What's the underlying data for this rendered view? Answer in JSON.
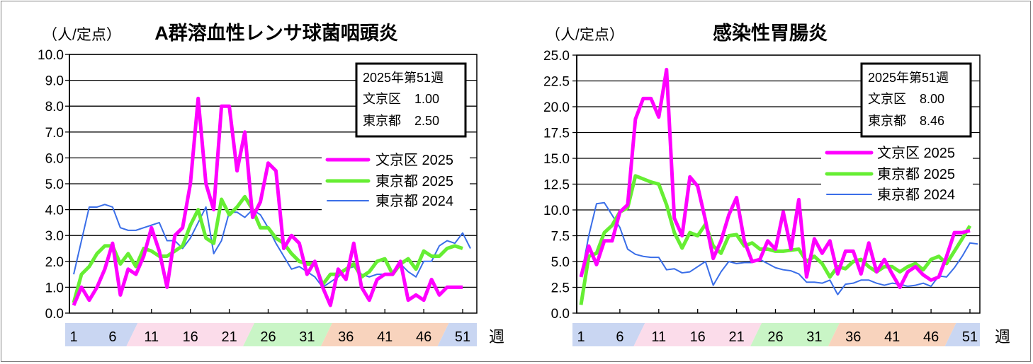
{
  "colors": {
    "bunkyo_2025": "#ff00ff",
    "tokyo_2025": "#66ee33",
    "tokyo_2024": "#3a6ee8",
    "band_blue": "#c9d6f2",
    "band_pink": "#fbdcea",
    "band_green": "#c9f5c6",
    "band_orange": "#f8d3bd"
  },
  "chart_data": [
    {
      "type": "line",
      "title": "A群溶血性レンサ球菌咽頭炎",
      "ylabel": "（人/定点）",
      "xlabel": "週",
      "ylim": [
        0,
        10
      ],
      "yticks": [
        "0.0",
        "1.0",
        "2.0",
        "3.0",
        "4.0",
        "5.0",
        "6.0",
        "7.0",
        "8.0",
        "9.0",
        "10.0"
      ],
      "xticks": [
        "1",
        "6",
        "11",
        "16",
        "21",
        "26",
        "31",
        "36",
        "41",
        "46",
        "51"
      ],
      "grid": true,
      "legend_placement": "right",
      "info_box": {
        "heading": "2025年第51週",
        "rows": [
          {
            "label": "文京区",
            "value": "1.00"
          },
          {
            "label": "東京都",
            "value": "2.50"
          }
        ]
      },
      "series": [
        {
          "name": "文京区 2025",
          "color_key": "bunkyo_2025",
          "width": 5,
          "values": [
            0.3,
            1.0,
            0.5,
            1.0,
            1.7,
            2.7,
            0.7,
            1.7,
            1.5,
            2.2,
            3.3,
            2.4,
            1.0,
            3.0,
            3.3,
            5.0,
            8.3,
            5.0,
            4.0,
            8.0,
            8.0,
            5.5,
            7.0,
            3.7,
            4.3,
            5.8,
            5.5,
            2.5,
            3.0,
            2.7,
            1.5,
            2.0,
            1.0,
            0.3,
            1.7,
            1.3,
            2.7,
            1.0,
            0.5,
            1.3,
            1.5,
            1.5,
            2.0,
            0.5,
            0.7,
            0.5,
            1.3,
            0.7,
            1.0,
            1.0,
            1.0
          ]
        },
        {
          "name": "東京都 2025",
          "color_key": "tokyo_2025",
          "width": 5,
          "values": [
            0.4,
            1.5,
            1.8,
            2.3,
            2.6,
            2.6,
            1.9,
            2.3,
            1.8,
            2.5,
            2.4,
            2.2,
            2.2,
            2.4,
            2.6,
            3.4,
            4.0,
            2.9,
            2.7,
            4.4,
            3.8,
            4.1,
            4.5,
            4.0,
            3.3,
            3.3,
            2.9,
            2.7,
            2.3,
            2.0,
            1.9,
            1.9,
            1.1,
            1.5,
            1.5,
            1.7,
            1.9,
            1.4,
            1.6,
            2.0,
            2.1,
            1.5,
            1.9,
            2.1,
            1.7,
            2.4,
            2.2,
            2.2,
            2.5,
            2.6,
            2.5
          ]
        },
        {
          "name": "東京都 2024",
          "color_key": "tokyo_2024",
          "width": 2,
          "values": [
            1.5,
            2.8,
            4.1,
            4.1,
            4.2,
            4.1,
            3.3,
            3.2,
            3.2,
            3.3,
            3.4,
            3.5,
            2.8,
            2.8,
            2.5,
            2.9,
            3.5,
            4.1,
            2.3,
            2.8,
            3.9,
            3.9,
            3.7,
            4.0,
            3.8,
            3.3,
            2.7,
            2.2,
            1.7,
            1.8,
            1.6,
            1.4,
            1.0,
            1.2,
            1.4,
            1.7,
            1.8,
            1.5,
            1.4,
            1.5,
            1.5,
            1.5,
            1.9,
            1.6,
            1.4,
            2.0,
            2.0,
            2.6,
            2.8,
            2.7,
            3.1,
            2.5
          ]
        }
      ]
    },
    {
      "type": "line",
      "title": "感染性胃腸炎",
      "ylabel": "（人/定点）",
      "xlabel": "週",
      "ylim": [
        0,
        25
      ],
      "yticks": [
        "0.0",
        "2.5",
        "5.0",
        "7.5",
        "10.0",
        "12.5",
        "15.0",
        "17.5",
        "20.0",
        "22.5",
        "25.0"
      ],
      "xticks": [
        "1",
        "6",
        "11",
        "16",
        "21",
        "26",
        "31",
        "36",
        "41",
        "46",
        "51"
      ],
      "grid": true,
      "legend_placement": "right",
      "info_box": {
        "heading": "2025年第51週",
        "rows": [
          {
            "label": "文京区",
            "value": "8.00"
          },
          {
            "label": "東京都",
            "value": "8.46"
          }
        ]
      },
      "series": [
        {
          "name": "文京区 2025",
          "color_key": "bunkyo_2025",
          "width": 5,
          "values": [
            3.5,
            6.5,
            4.7,
            7.0,
            7.0,
            9.8,
            10.5,
            18.8,
            20.8,
            20.8,
            19.0,
            23.6,
            9.2,
            7.5,
            13.2,
            12.3,
            9.0,
            5.3,
            7.0,
            9.5,
            11.2,
            7.0,
            5.0,
            5.2,
            7.0,
            6.2,
            9.8,
            6.2,
            11.0,
            3.5,
            7.2,
            5.8,
            7.0,
            3.8,
            6.0,
            6.0,
            3.8,
            6.8,
            4.0,
            5.2,
            3.8,
            2.5,
            4.0,
            4.5,
            3.7,
            3.2,
            3.5,
            5.5,
            7.8,
            7.8,
            8.0
          ]
        },
        {
          "name": "東京都 2025",
          "color_key": "tokyo_2025",
          "width": 5,
          "values": [
            0.8,
            5.5,
            5.8,
            7.8,
            8.5,
            9.8,
            10.2,
            13.3,
            13.0,
            12.7,
            12.5,
            10.5,
            7.8,
            6.3,
            7.8,
            7.5,
            8.6,
            6.5,
            5.8,
            7.5,
            7.6,
            6.5,
            6.8,
            6.2,
            6.2,
            6.0,
            6.0,
            6.1,
            6.2,
            5.0,
            5.5,
            4.8,
            3.5,
            4.5,
            4.3,
            5.0,
            5.2,
            4.5,
            4.0,
            4.5,
            4.5,
            4.0,
            4.5,
            4.8,
            4.2,
            5.2,
            5.5,
            4.8,
            6.0,
            7.2,
            8.46
          ]
        },
        {
          "name": "東京都 2024",
          "color_key": "tokyo_2024",
          "width": 2,
          "values": [
            3.5,
            7.5,
            10.6,
            10.7,
            9.5,
            8.3,
            6.2,
            5.7,
            5.5,
            5.4,
            5.4,
            4.2,
            4.3,
            3.9,
            4.0,
            4.5,
            5.0,
            2.7,
            4.0,
            5.0,
            4.8,
            4.9,
            4.9,
            5.2,
            4.8,
            4.4,
            4.2,
            4.1,
            3.8,
            3.0,
            3.0,
            2.9,
            3.2,
            1.8,
            2.8,
            2.9,
            3.2,
            3.2,
            2.9,
            2.7,
            2.9,
            2.8,
            2.6,
            2.7,
            2.9,
            2.6,
            3.6,
            3.5,
            4.4,
            5.5,
            6.8,
            6.7
          ]
        }
      ]
    }
  ],
  "week_bands": [
    {
      "from": 1,
      "to": 8.5,
      "color_key": "band_blue"
    },
    {
      "from": 8.5,
      "to": 23.5,
      "color_key": "band_pink"
    },
    {
      "from": 23.5,
      "to": 33.5,
      "color_key": "band_green"
    },
    {
      "from": 33.5,
      "to": 48.5,
      "color_key": "band_orange"
    },
    {
      "from": 48.5,
      "to": 53,
      "color_key": "band_blue"
    }
  ]
}
